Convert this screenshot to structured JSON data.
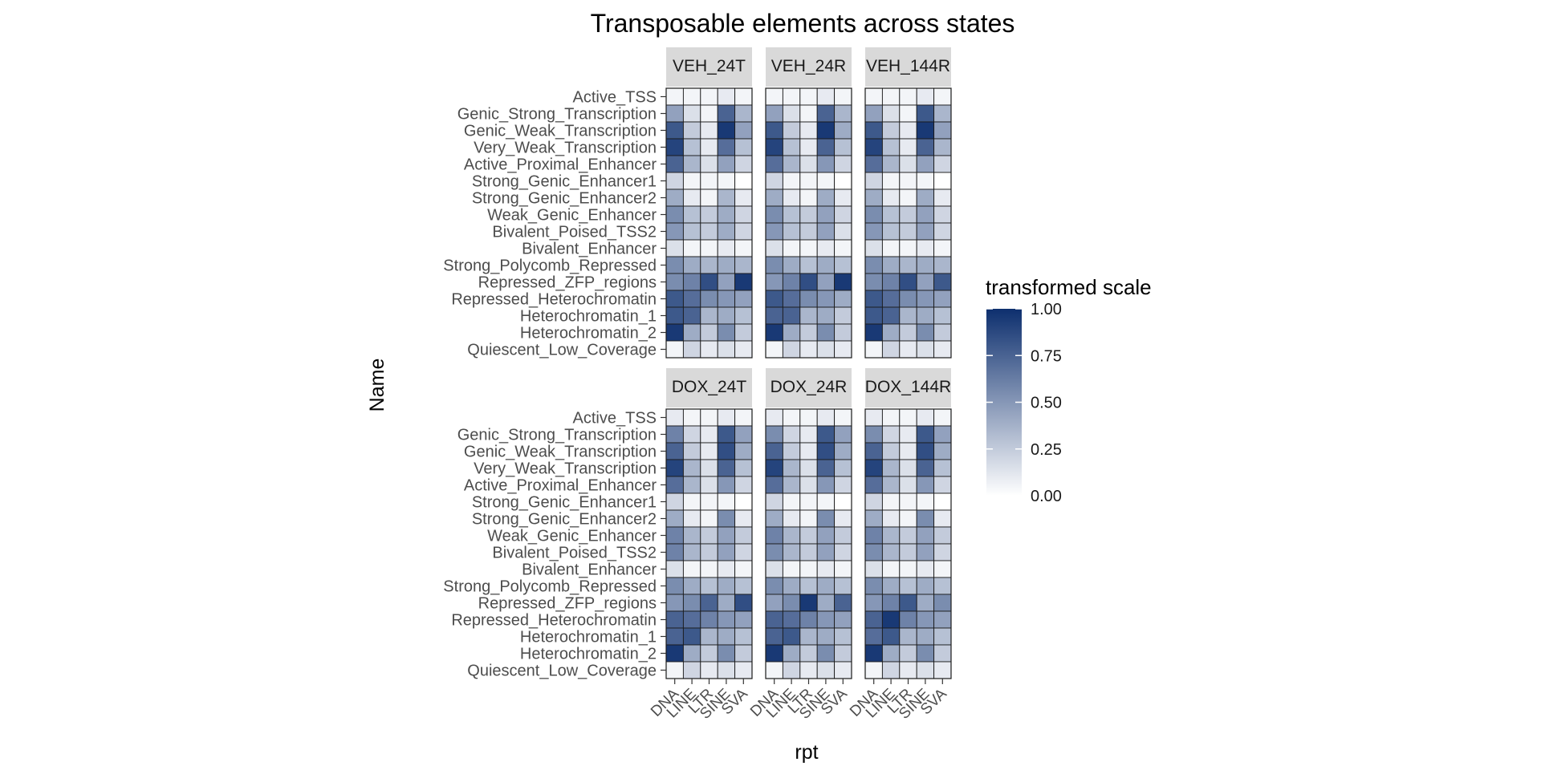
{
  "chart_data": {
    "type": "heatmap",
    "title": "Transposable elements across states",
    "xlabel": "rpt",
    "ylabel": "Name",
    "x_categories": [
      "DNA",
      "LINE",
      "LTR",
      "SINE",
      "SVA"
    ],
    "y_categories": [
      "Active_TSS",
      "Genic_Strong_Transcription",
      "Genic_Weak_Transcription",
      "Very_Weak_Transcription",
      "Active_Proximal_Enhancer",
      "Strong_Genic_Enhancer1",
      "Strong_Genic_Enhancer2",
      "Weak_Genic_Enhancer",
      "Bivalent_Poised_TSS2",
      "Bivalent_Enhancer",
      "Strong_Polycomb_Repressed",
      "Repressed_ZFP_regions",
      "Repressed_Heterochromatin",
      "Heterochromatin_1",
      "Heterochromatin_2",
      "Quiescent_Low_Coverage"
    ],
    "legend": {
      "title": "transformed scale",
      "breaks": [
        "1.00",
        "0.75",
        "0.50",
        "0.25",
        "0.00"
      ],
      "low_color": "#ffffff",
      "high_color": "#0d2f6e",
      "position": "right"
    },
    "panels": [
      {
        "name": "VEH_24T",
        "values": [
          [
            0.05,
            0.05,
            0.05,
            0.1,
            0.05
          ],
          [
            0.45,
            0.15,
            0.05,
            0.75,
            0.35
          ],
          [
            0.8,
            0.25,
            0.1,
            0.95,
            0.45
          ],
          [
            0.9,
            0.3,
            0.1,
            0.7,
            0.3
          ],
          [
            0.75,
            0.35,
            0.15,
            0.45,
            0.2
          ],
          [
            0.2,
            0.05,
            0.05,
            0.05,
            0.0
          ],
          [
            0.4,
            0.1,
            0.05,
            0.35,
            0.1
          ],
          [
            0.55,
            0.3,
            0.25,
            0.4,
            0.2
          ],
          [
            0.5,
            0.3,
            0.25,
            0.4,
            0.2
          ],
          [
            0.15,
            0.05,
            0.05,
            0.1,
            0.05
          ],
          [
            0.55,
            0.4,
            0.35,
            0.4,
            0.35
          ],
          [
            0.55,
            0.6,
            0.85,
            0.45,
            0.95
          ],
          [
            0.8,
            0.7,
            0.55,
            0.5,
            0.45
          ],
          [
            0.8,
            0.75,
            0.35,
            0.4,
            0.3
          ],
          [
            0.95,
            0.4,
            0.25,
            0.55,
            0.25
          ],
          [
            0.05,
            0.2,
            0.1,
            0.15,
            0.1
          ]
        ]
      },
      {
        "name": "VEH_24R",
        "values": [
          [
            0.05,
            0.05,
            0.05,
            0.1,
            0.05
          ],
          [
            0.45,
            0.15,
            0.05,
            0.75,
            0.35
          ],
          [
            0.8,
            0.25,
            0.1,
            0.95,
            0.4
          ],
          [
            0.9,
            0.3,
            0.1,
            0.75,
            0.3
          ],
          [
            0.7,
            0.35,
            0.15,
            0.5,
            0.2
          ],
          [
            0.2,
            0.05,
            0.05,
            0.05,
            0.0
          ],
          [
            0.4,
            0.1,
            0.05,
            0.4,
            0.1
          ],
          [
            0.55,
            0.3,
            0.25,
            0.45,
            0.2
          ],
          [
            0.5,
            0.3,
            0.25,
            0.45,
            0.15
          ],
          [
            0.15,
            0.05,
            0.05,
            0.1,
            0.05
          ],
          [
            0.55,
            0.4,
            0.3,
            0.4,
            0.3
          ],
          [
            0.5,
            0.6,
            0.85,
            0.45,
            0.95
          ],
          [
            0.8,
            0.7,
            0.55,
            0.5,
            0.4
          ],
          [
            0.75,
            0.75,
            0.35,
            0.4,
            0.25
          ],
          [
            0.95,
            0.4,
            0.25,
            0.55,
            0.25
          ],
          [
            0.05,
            0.2,
            0.1,
            0.15,
            0.1
          ]
        ]
      },
      {
        "name": "VEH_144R",
        "values": [
          [
            0.05,
            0.05,
            0.05,
            0.1,
            0.05
          ],
          [
            0.45,
            0.15,
            0.05,
            0.8,
            0.35
          ],
          [
            0.8,
            0.25,
            0.1,
            0.95,
            0.45
          ],
          [
            0.9,
            0.3,
            0.1,
            0.75,
            0.35
          ],
          [
            0.7,
            0.35,
            0.15,
            0.45,
            0.2
          ],
          [
            0.2,
            0.05,
            0.05,
            0.05,
            0.0
          ],
          [
            0.4,
            0.1,
            0.05,
            0.4,
            0.1
          ],
          [
            0.55,
            0.3,
            0.25,
            0.45,
            0.2
          ],
          [
            0.5,
            0.3,
            0.25,
            0.45,
            0.2
          ],
          [
            0.15,
            0.05,
            0.05,
            0.1,
            0.05
          ],
          [
            0.55,
            0.4,
            0.35,
            0.4,
            0.35
          ],
          [
            0.55,
            0.6,
            0.85,
            0.45,
            0.8
          ],
          [
            0.8,
            0.7,
            0.55,
            0.5,
            0.45
          ],
          [
            0.8,
            0.75,
            0.35,
            0.4,
            0.3
          ],
          [
            0.95,
            0.4,
            0.25,
            0.55,
            0.25
          ],
          [
            0.05,
            0.2,
            0.1,
            0.15,
            0.1
          ]
        ]
      },
      {
        "name": "DOX_24T",
        "values": [
          [
            0.1,
            0.05,
            0.05,
            0.1,
            0.05
          ],
          [
            0.6,
            0.2,
            0.1,
            0.8,
            0.45
          ],
          [
            0.75,
            0.25,
            0.1,
            0.85,
            0.4
          ],
          [
            0.9,
            0.35,
            0.15,
            0.75,
            0.3
          ],
          [
            0.7,
            0.35,
            0.15,
            0.5,
            0.2
          ],
          [
            0.2,
            0.05,
            0.05,
            0.05,
            0.0
          ],
          [
            0.4,
            0.1,
            0.05,
            0.55,
            0.1
          ],
          [
            0.6,
            0.35,
            0.25,
            0.45,
            0.25
          ],
          [
            0.6,
            0.35,
            0.25,
            0.45,
            0.2
          ],
          [
            0.15,
            0.05,
            0.05,
            0.1,
            0.05
          ],
          [
            0.55,
            0.4,
            0.3,
            0.4,
            0.3
          ],
          [
            0.5,
            0.55,
            0.75,
            0.4,
            0.85
          ],
          [
            0.75,
            0.7,
            0.6,
            0.5,
            0.45
          ],
          [
            0.75,
            0.8,
            0.35,
            0.4,
            0.3
          ],
          [
            0.95,
            0.4,
            0.25,
            0.55,
            0.25
          ],
          [
            0.05,
            0.2,
            0.1,
            0.15,
            0.1
          ]
        ]
      },
      {
        "name": "DOX_24R",
        "values": [
          [
            0.1,
            0.05,
            0.05,
            0.1,
            0.05
          ],
          [
            0.55,
            0.2,
            0.1,
            0.8,
            0.45
          ],
          [
            0.75,
            0.25,
            0.1,
            0.85,
            0.4
          ],
          [
            0.9,
            0.35,
            0.15,
            0.75,
            0.3
          ],
          [
            0.7,
            0.35,
            0.15,
            0.5,
            0.2
          ],
          [
            0.2,
            0.05,
            0.05,
            0.05,
            0.0
          ],
          [
            0.4,
            0.1,
            0.05,
            0.55,
            0.1
          ],
          [
            0.6,
            0.35,
            0.25,
            0.45,
            0.25
          ],
          [
            0.55,
            0.35,
            0.25,
            0.45,
            0.2
          ],
          [
            0.15,
            0.05,
            0.05,
            0.1,
            0.05
          ],
          [
            0.55,
            0.4,
            0.3,
            0.4,
            0.3
          ],
          [
            0.45,
            0.55,
            0.95,
            0.4,
            0.75
          ],
          [
            0.75,
            0.7,
            0.6,
            0.5,
            0.45
          ],
          [
            0.75,
            0.8,
            0.35,
            0.4,
            0.3
          ],
          [
            0.95,
            0.4,
            0.25,
            0.55,
            0.25
          ],
          [
            0.05,
            0.2,
            0.1,
            0.15,
            0.1
          ]
        ]
      },
      {
        "name": "DOX_144R",
        "values": [
          [
            0.1,
            0.05,
            0.05,
            0.1,
            0.05
          ],
          [
            0.55,
            0.2,
            0.1,
            0.8,
            0.45
          ],
          [
            0.75,
            0.25,
            0.1,
            0.85,
            0.4
          ],
          [
            0.9,
            0.35,
            0.15,
            0.75,
            0.3
          ],
          [
            0.7,
            0.35,
            0.15,
            0.5,
            0.2
          ],
          [
            0.2,
            0.05,
            0.05,
            0.05,
            0.0
          ],
          [
            0.4,
            0.1,
            0.05,
            0.55,
            0.1
          ],
          [
            0.6,
            0.35,
            0.25,
            0.45,
            0.25
          ],
          [
            0.55,
            0.35,
            0.25,
            0.45,
            0.2
          ],
          [
            0.15,
            0.05,
            0.05,
            0.1,
            0.05
          ],
          [
            0.55,
            0.4,
            0.3,
            0.4,
            0.3
          ],
          [
            0.5,
            0.6,
            0.8,
            0.4,
            0.55
          ],
          [
            0.75,
            0.95,
            0.6,
            0.5,
            0.45
          ],
          [
            0.7,
            0.8,
            0.35,
            0.4,
            0.3
          ],
          [
            0.95,
            0.4,
            0.25,
            0.55,
            0.25
          ],
          [
            0.05,
            0.2,
            0.1,
            0.15,
            0.1
          ]
        ]
      }
    ]
  }
}
